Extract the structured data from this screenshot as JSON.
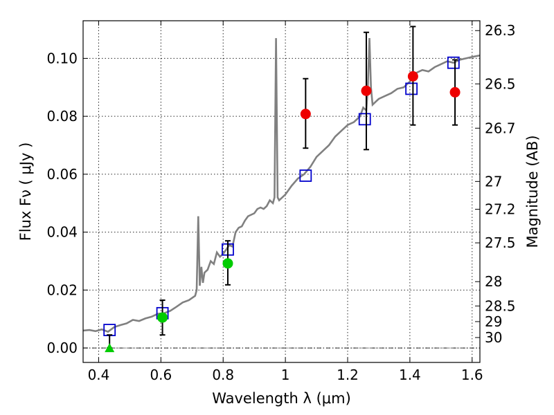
{
  "chart_data": {
    "type": "scatter",
    "xlabel": "Wavelength  λ (μm)",
    "ylabel": "Flux  Fν  ( μJy )",
    "y2label": "Magnitude (AB)",
    "xlim": [
      0.35,
      1.625
    ],
    "ylim": [
      -0.005,
      0.113
    ],
    "xticks": [
      0.4,
      0.6,
      0.8,
      1.0,
      1.2,
      1.4,
      1.6
    ],
    "xtick_labels": [
      "0.4",
      "0.6",
      "0.8",
      "1",
      "1.2",
      "1.4",
      "1.6"
    ],
    "yticks": [
      0.0,
      0.02,
      0.04,
      0.06,
      0.08,
      0.1
    ],
    "ytick_labels": [
      "0.00",
      "0.02",
      "0.04",
      "0.06",
      "0.08",
      "0.10"
    ],
    "y2ticks": [
      {
        "label": "26.3",
        "flux": 0.1096
      },
      {
        "label": "26.5",
        "flux": 0.0912
      },
      {
        "label": "26.7",
        "flux": 0.0759
      },
      {
        "label": "27",
        "flux": 0.0575
      },
      {
        "label": "27.2",
        "flux": 0.0479
      },
      {
        "label": "27.5",
        "flux": 0.0363
      },
      {
        "label": "28",
        "flux": 0.0229
      },
      {
        "label": "28.5",
        "flux": 0.0145
      },
      {
        "label": "29",
        "flux": 0.0091
      },
      {
        "label": "30",
        "flux": 0.0036
      }
    ],
    "grid": true,
    "zero_line": true,
    "model_spectrum": {
      "color": "#808080",
      "x": [
        0.35,
        0.37,
        0.39,
        0.41,
        0.43,
        0.45,
        0.47,
        0.49,
        0.51,
        0.53,
        0.55,
        0.57,
        0.59,
        0.61,
        0.63,
        0.65,
        0.67,
        0.69,
        0.71,
        0.715,
        0.72,
        0.725,
        0.73,
        0.735,
        0.74,
        0.75,
        0.76,
        0.77,
        0.78,
        0.79,
        0.8,
        0.81,
        0.82,
        0.83,
        0.84,
        0.85,
        0.86,
        0.87,
        0.88,
        0.89,
        0.9,
        0.91,
        0.92,
        0.93,
        0.94,
        0.95,
        0.96,
        0.965,
        0.97,
        0.975,
        0.98,
        0.99,
        1.0,
        1.02,
        1.04,
        1.06,
        1.08,
        1.1,
        1.12,
        1.14,
        1.16,
        1.18,
        1.2,
        1.22,
        1.24,
        1.25,
        1.26,
        1.265,
        1.27,
        1.275,
        1.28,
        1.29,
        1.3,
        1.32,
        1.34,
        1.36,
        1.38,
        1.4,
        1.42,
        1.44,
        1.46,
        1.48,
        1.5,
        1.52,
        1.54,
        1.56,
        1.58,
        1.6,
        1.625
      ],
      "y": [
        0.006,
        0.0062,
        0.0058,
        0.0064,
        0.0056,
        0.0072,
        0.0079,
        0.0085,
        0.0097,
        0.0093,
        0.0102,
        0.0108,
        0.0118,
        0.012,
        0.0128,
        0.0142,
        0.0157,
        0.0165,
        0.018,
        0.02,
        0.0455,
        0.0215,
        0.028,
        0.0225,
        0.026,
        0.027,
        0.03,
        0.029,
        0.033,
        0.0315,
        0.0325,
        0.034,
        0.0355,
        0.035,
        0.04,
        0.0415,
        0.042,
        0.044,
        0.0455,
        0.046,
        0.0465,
        0.048,
        0.0485,
        0.048,
        0.049,
        0.051,
        0.05,
        0.052,
        0.107,
        0.052,
        0.051,
        0.052,
        0.053,
        0.056,
        0.0585,
        0.06,
        0.0625,
        0.066,
        0.068,
        0.07,
        0.073,
        0.075,
        0.077,
        0.078,
        0.08,
        0.083,
        0.082,
        0.09,
        0.107,
        0.09,
        0.084,
        0.085,
        0.086,
        0.087,
        0.088,
        0.0895,
        0.09,
        0.092,
        0.095,
        0.096,
        0.0955,
        0.097,
        0.098,
        0.099,
        0.0985,
        0.0995,
        0.1,
        0.1005,
        0.101
      ]
    },
    "series": [
      {
        "marker": "open-square",
        "color": "#0000cc",
        "x": [
          0.435,
          0.605,
          0.815,
          1.065,
          1.255,
          1.405,
          1.54
        ],
        "y": [
          0.0062,
          0.012,
          0.034,
          0.0595,
          0.079,
          0.0895,
          0.0985
        ]
      },
      {
        "marker": "filled-circle",
        "color": "#ee0000",
        "x": [
          1.065,
          1.26,
          1.41,
          1.545
        ],
        "y": [
          0.0808,
          0.0888,
          0.0938,
          0.0883
        ],
        "yerr_low": [
          0.069,
          0.0685,
          0.077,
          0.077
        ],
        "yerr_high": [
          0.093,
          0.109,
          0.111,
          0.0995
        ]
      },
      {
        "marker": "filled-circle",
        "color": "#00cc00",
        "x": [
          0.605,
          0.815
        ],
        "y": [
          0.0105,
          0.0292
        ],
        "yerr_low": [
          0.0045,
          0.0218
        ],
        "yerr_high": [
          0.0165,
          0.037
        ]
      },
      {
        "marker": "filled-triangle-up",
        "color": "#00cc00",
        "x": [
          0.435
        ],
        "y": [
          0.0
        ],
        "yerr_low": [
          0.0
        ],
        "yerr_high": [
          0.0045
        ]
      }
    ]
  }
}
